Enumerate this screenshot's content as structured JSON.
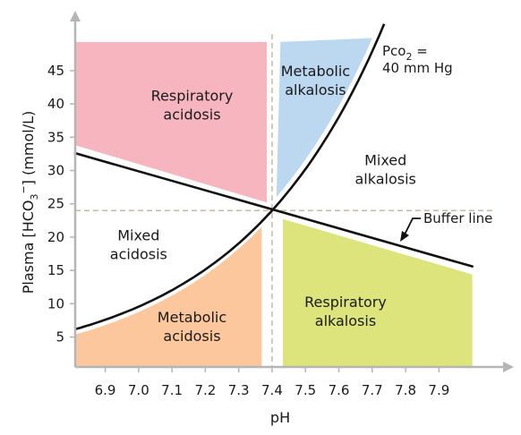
{
  "chart_data": {
    "type": "area",
    "xlabel": "pH",
    "ylabel": {
      "main": "Plasma [HCO",
      "sub": "3",
      "sup": "−",
      "tail": "] (mmol/L)"
    },
    "x_ticks": [
      "6.9",
      "7.0",
      "7.1",
      "7.2",
      "7.3",
      "7.4",
      "7.5",
      "7.6",
      "7.7",
      "7.8",
      "7.9"
    ],
    "y_ticks": [
      "5",
      "10",
      "15",
      "20",
      "25",
      "30",
      "35",
      "40",
      "45"
    ],
    "xlim": [
      6.81,
      8.06
    ],
    "ylim": [
      0.5,
      50.5
    ],
    "normal_point": {
      "ph": 7.4,
      "hco3": 24
    },
    "reference_lines": {
      "vertical_ph": 7.4,
      "horizontal_hco3": 24
    },
    "pco2_isobar": {
      "label_line1": "Pco",
      "label_sub": "2",
      "label_eq": " =",
      "label_line2": "40 mm Hg",
      "pco2_mmHg": 40
    },
    "buffer_line": {
      "label": "Buffer line",
      "points": [
        [
          6.81,
          32.6
        ],
        [
          8.0,
          15.6
        ]
      ]
    },
    "regions": [
      {
        "id": "respiratory-acidosis",
        "line1": "Respiratory",
        "line2": "acidosis",
        "color": "#f7b6bf",
        "label_at": [
          7.16,
          40.5
        ]
      },
      {
        "id": "metabolic-alkalosis",
        "line1": "Metabolic",
        "line2": "alkalosis",
        "color": "#bcd8f0",
        "label_at": [
          7.53,
          44.2
        ]
      },
      {
        "id": "mixed-alkalosis",
        "line1": "Mixed",
        "line2": "alkalosis",
        "color": "",
        "label_at": [
          7.74,
          30.8
        ]
      },
      {
        "id": "mixed-acidosis",
        "line1": "Mixed",
        "line2": "acidosis",
        "color": "",
        "label_at": [
          7.0,
          19.5
        ]
      },
      {
        "id": "metabolic-acidosis",
        "line1": "Metabolic",
        "line2": "acidosis",
        "color": "#fcc79c",
        "label_at": [
          7.16,
          7.2
        ]
      },
      {
        "id": "respiratory-alkalosis",
        "line1": "Respiratory",
        "line2": "alkalosis",
        "color": "#dde47c",
        "label_at": [
          7.62,
          9.5
        ]
      }
    ],
    "colors": {
      "axis": "#b5b5b5",
      "curve": "#111111",
      "reference": "#c4b39c"
    }
  }
}
